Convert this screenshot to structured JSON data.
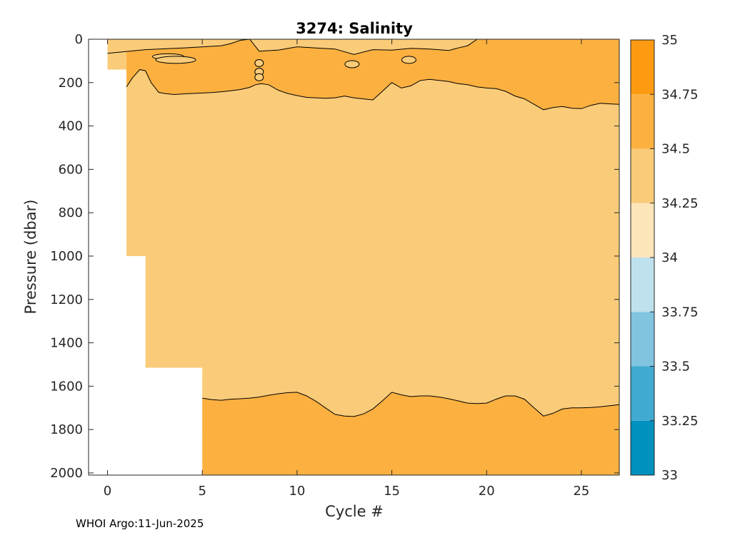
{
  "chart_data": {
    "type": "heatmap",
    "title": "3274:  Salinity",
    "xlabel": "Cycle #",
    "ylabel": "Pressure (dbar)",
    "xlim": [
      -1,
      27
    ],
    "ylim": [
      2010,
      0
    ],
    "y_reversed": true,
    "xticks": [
      0,
      5,
      10,
      15,
      20,
      25
    ],
    "yticks": [
      0,
      200,
      400,
      600,
      800,
      1000,
      1200,
      1400,
      1600,
      1800,
      2000
    ],
    "grid": false,
    "colorbar": {
      "ticks": [
        "33",
        "33.25",
        "33.5",
        "33.75",
        "34",
        "34.25",
        "34.5",
        "34.75",
        "35"
      ],
      "levels": [
        {
          "from": 33.0,
          "to": 33.25,
          "color": "#0091be"
        },
        {
          "from": 33.25,
          "to": 33.5,
          "color": "#40aad0"
        },
        {
          "from": 33.5,
          "to": 33.75,
          "color": "#80c4e0"
        },
        {
          "from": 33.75,
          "to": 34.0,
          "color": "#bfe1ee"
        },
        {
          "from": 34.0,
          "to": 34.25,
          "color": "#fde5ba"
        },
        {
          "from": 34.25,
          "to": 34.5,
          "color": "#facb78"
        },
        {
          "from": 34.5,
          "to": 34.75,
          "color": "#fbb040"
        },
        {
          "from": 34.75,
          "to": 35.0,
          "color": "#fc9b11"
        }
      ]
    },
    "max_profile_depth": [
      {
        "cycle": 0,
        "pressure": 140
      },
      {
        "cycle": 1,
        "pressure": 1000
      },
      {
        "cycle": 2,
        "pressure": 1515
      },
      {
        "cycle": 5,
        "pressure": 1820
      },
      {
        "cycle": 8,
        "pressure": 2010
      }
    ],
    "contour_34_5_upper": {
      "cycle": [
        1.0,
        1.3,
        1.7,
        2.0,
        2.3,
        2.7,
        3.0,
        3.5,
        4.0,
        4.5,
        5.0,
        5.5,
        6.0,
        6.5,
        7.0,
        7.5,
        7.8,
        8.1,
        8.5,
        9.0,
        9.5,
        10.0,
        10.5,
        11.0,
        11.5,
        12.0,
        12.5,
        13.0,
        13.5,
        14.0,
        14.5,
        15.0,
        15.5,
        16.0,
        16.5,
        17.0,
        17.5,
        18.0,
        18.5,
        19.0,
        19.5,
        20.0,
        20.5,
        21.0,
        21.5,
        22.0,
        22.5,
        23.0,
        23.5,
        24.0,
        24.5,
        25.0,
        25.5,
        26.0,
        26.5,
        27.0
      ],
      "pressure": [
        220,
        180,
        140,
        145,
        200,
        245,
        250,
        255,
        252,
        250,
        248,
        246,
        242,
        238,
        232,
        222,
        210,
        205,
        210,
        235,
        250,
        260,
        268,
        270,
        272,
        270,
        262,
        270,
        275,
        280,
        240,
        200,
        225,
        215,
        190,
        185,
        190,
        195,
        205,
        210,
        220,
        225,
        228,
        240,
        262,
        275,
        300,
        325,
        315,
        310,
        318,
        320,
        305,
        295,
        298,
        300
      ]
    },
    "contour_34_5_lower": {
      "cycle": [
        5.0,
        5.5,
        6.0,
        6.5,
        7.0,
        7.5,
        8.0,
        8.5,
        9.0,
        9.5,
        10.0,
        10.5,
        11.0,
        11.5,
        12.0,
        12.5,
        13.0,
        13.5,
        14.0,
        14.5,
        15.0,
        15.5,
        16.0,
        16.5,
        17.0,
        17.5,
        18.0,
        18.5,
        19.0,
        19.5,
        20.0,
        20.5,
        21.0,
        21.5,
        22.0,
        22.5,
        23.0,
        23.5,
        24.0,
        24.5,
        25.0,
        25.5,
        26.0,
        26.5,
        27.0
      ],
      "pressure": [
        1655,
        1662,
        1665,
        1660,
        1658,
        1655,
        1650,
        1642,
        1635,
        1630,
        1628,
        1645,
        1670,
        1700,
        1730,
        1738,
        1740,
        1728,
        1705,
        1668,
        1628,
        1640,
        1648,
        1645,
        1645,
        1650,
        1658,
        1668,
        1678,
        1680,
        1678,
        1660,
        1645,
        1645,
        1660,
        1700,
        1738,
        1725,
        1705,
        1700,
        1700,
        1698,
        1695,
        1690,
        1685
      ]
    },
    "contour_34_5_surface": {
      "cycle": [
        0.0,
        2.0,
        4.0,
        6.0,
        6.5,
        7.0,
        7.5,
        8.0,
        9.0,
        10.0,
        11.0,
        12.0,
        13.0,
        14.0,
        15.0,
        16.0,
        17.0,
        18.0,
        18.5,
        19.0,
        19.5
      ],
      "pressure": [
        65,
        48,
        40,
        30,
        20,
        5,
        0,
        55,
        50,
        35,
        40,
        45,
        70,
        48,
        50,
        42,
        45,
        52,
        40,
        30,
        0
      ]
    }
  },
  "footer": {
    "text": "WHOI Argo:11-Jun-2025"
  }
}
